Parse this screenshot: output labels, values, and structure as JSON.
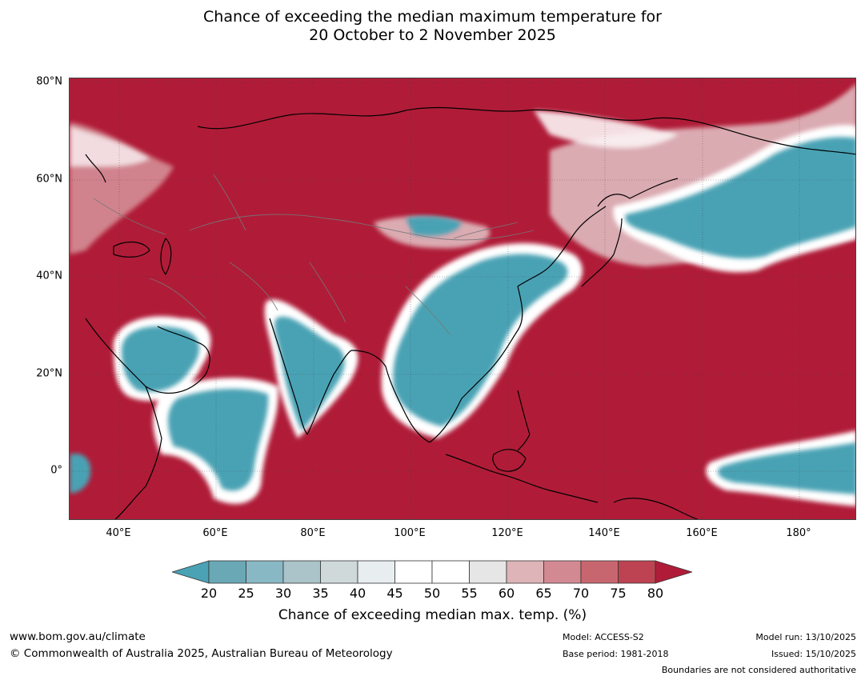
{
  "title": {
    "line1": "Chance of exceeding the median maximum temperature for",
    "line2": "20 October to 2 November 2025"
  },
  "map": {
    "lat_labels": [
      "80°N",
      "60°N",
      "40°N",
      "20°N",
      "0°"
    ],
    "lon_labels": [
      "40°E",
      "60°E",
      "80°E",
      "100°E",
      "120°E",
      "140°E",
      "160°E",
      "180°"
    ],
    "colors": {
      "high": "#b01c38",
      "low": "#4aa2b4",
      "neutral": "#ffffff"
    }
  },
  "colorbar": {
    "ticks": [
      "20",
      "25",
      "30",
      "35",
      "40",
      "45",
      "50",
      "55",
      "60",
      "65",
      "70",
      "75",
      "80"
    ],
    "colors": [
      "#4aa2b4",
      "#6aa8b5",
      "#88b8c4",
      "#aac4c9",
      "#cfd9da",
      "#e8eef0",
      "#ffffff",
      "#ffffff",
      "#e6e6e6",
      "#deb4b9",
      "#d38992",
      "#c86670",
      "#be4352",
      "#b01c38"
    ],
    "label": "Chance of exceeding median max. temp. (%)"
  },
  "footer": {
    "url": "www.bom.gov.au/climate",
    "copyright": "© Commonwealth of Australia 2025, Australian Bureau of Meteorology",
    "model": "Model: ACCESS-S2",
    "base_period": "Base period: 1981-2018",
    "model_run": "Model run: 13/10/2025",
    "issued": "Issued: 15/10/2025",
    "boundaries": "Boundaries are not considered authoritative"
  }
}
